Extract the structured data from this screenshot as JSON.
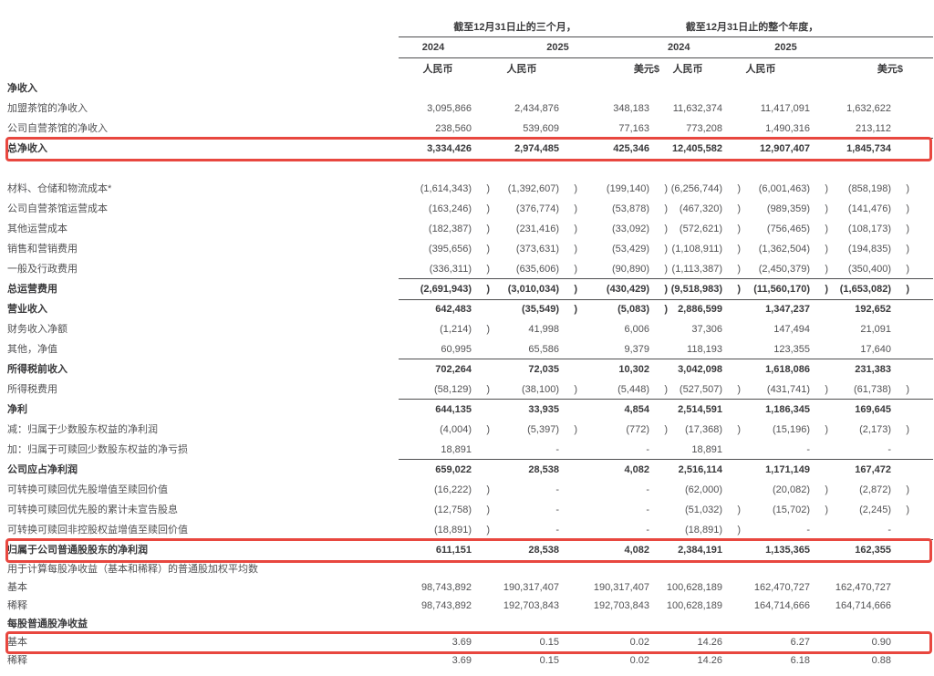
{
  "table": {
    "header": {
      "period_groups": [
        {
          "title": "截至12月31日止的三个月，",
          "years": [
            "2024",
            "2025"
          ]
        },
        {
          "title": "截至12月31日止的整个年度，",
          "years": [
            "2024",
            "2025"
          ]
        }
      ],
      "currency_columns": [
        "人民币",
        "人民币",
        "美元$",
        "人民币",
        "人民币",
        "美元$"
      ]
    },
    "highlight_color": "#e8473f",
    "rows": [
      {
        "label": "净收入",
        "bold": true,
        "values": []
      },
      {
        "label": "加盟茶馆的净收入",
        "values": [
          "3,095,866",
          "2,434,876",
          "348,183",
          "11,632,374",
          "11,417,091",
          "1,632,622"
        ]
      },
      {
        "label": "公司自营茶馆的净收入",
        "values": [
          "238,560",
          "539,609",
          "77,163",
          "773,208",
          "1,490,316",
          "213,112"
        ]
      },
      {
        "label": "总净收入",
        "bold": true,
        "rule_top": true,
        "highlight": true,
        "values": [
          "3,334,426",
          "2,974,485",
          "425,346",
          "12,405,582",
          "12,907,407",
          "1,845,734"
        ]
      },
      {
        "spacer": true
      },
      {
        "label": "材料、仓储和物流成本*",
        "values": [
          "(1,614,343) )",
          "(1,392,607) )",
          "(199,140) )",
          "(6,256,744) )",
          "(6,001,463) )",
          "(858,198) )"
        ]
      },
      {
        "label": "公司自营茶馆运营成本",
        "values": [
          "(163,246) )",
          "(376,774) )",
          "(53,878) )",
          "(467,320) )",
          "(989,359) )",
          "(141,476) )"
        ]
      },
      {
        "label": "其他运营成本",
        "values": [
          "(182,387) )",
          "(231,416) )",
          "(33,092) )",
          "(572,621) )",
          "(756,465) )",
          "(108,173) )"
        ]
      },
      {
        "label": "销售和营销费用",
        "values": [
          "(395,656) )",
          "(373,631) )",
          "(53,429) )",
          "(1,108,911) )",
          "(1,362,504) )",
          "(194,835) )"
        ]
      },
      {
        "label": "一般及行政费用",
        "values": [
          "(336,311) )",
          "(635,606) )",
          "(90,890) )",
          "(1,113,387) )",
          "(2,450,379) )",
          "(350,400) )"
        ]
      },
      {
        "label": "总运营费用",
        "bold": true,
        "rule_top": true,
        "rule_bottom": true,
        "values": [
          "(2,691,943) )",
          "(3,010,034) )",
          "(430,429) )",
          "(9,518,983) )",
          "(11,560,170) )",
          "(1,653,082) )"
        ]
      },
      {
        "label": "营业收入",
        "bold": true,
        "values": [
          "642,483",
          "(35,549) )",
          "(5,083) )",
          "2,886,599",
          "1,347,237",
          "192,652"
        ]
      },
      {
        "label": "财务收入净额",
        "values": [
          "(1,214) )",
          "41,998",
          "6,006",
          "37,306",
          "147,494",
          "21,091"
        ]
      },
      {
        "label": "其他，净值",
        "values": [
          "60,995",
          "65,586",
          "9,379",
          "118,193",
          "123,355",
          "17,640"
        ]
      },
      {
        "label": "所得税前收入",
        "bold": true,
        "rule_top": true,
        "values": [
          "702,264",
          "72,035",
          "10,302",
          "3,042,098",
          "1,618,086",
          "231,383"
        ]
      },
      {
        "label": "所得税费用",
        "values": [
          "(58,129) )",
          "(38,100) )",
          "(5,448) )",
          "(527,507) )",
          "(431,741) )",
          "(61,738) )"
        ]
      },
      {
        "label": "净利",
        "bold": true,
        "rule_top": true,
        "values": [
          "644,135",
          "33,935",
          "4,854",
          "2,514,591",
          "1,186,345",
          "169,645"
        ]
      },
      {
        "label": "减：归属于少数股东权益的净利润",
        "values": [
          "(4,004) )",
          "(5,397) )",
          "(772) )",
          "(17,368) )",
          "(15,196) )",
          "(2,173) )"
        ]
      },
      {
        "label": "加：归属于可赎回少数股东权益的净亏损",
        "values": [
          "18,891",
          "-",
          "-",
          "18,891",
          "-",
          "-"
        ]
      },
      {
        "label": "公司应占净利润",
        "bold": true,
        "rule_top": true,
        "values": [
          "659,022",
          "28,538",
          "4,082",
          "2,516,114",
          "1,171,149",
          "167,472"
        ]
      },
      {
        "label": "可转换可赎回优先股增值至赎回价值",
        "values": [
          "(16,222) )",
          "-",
          "-",
          "(62,000)",
          "(20,082) )",
          "(2,872) )"
        ]
      },
      {
        "label": "可转换可赎回优先股的累计未宣告股息",
        "values": [
          "(12,758) )",
          "-",
          "-",
          "(51,032) )",
          "(15,702) )",
          "(2,245) )"
        ]
      },
      {
        "label": "可转换可赎回非控股权益增值至赎回价值",
        "values": [
          "(18,891) )",
          "-",
          "-",
          "(18,891) )",
          "-",
          "-"
        ]
      },
      {
        "label": "归属于公司普通股股东的净利润",
        "bold": true,
        "rule_top": true,
        "highlight": true,
        "values": [
          "611,151",
          "28,538",
          "4,082",
          "2,384,191",
          "1,135,365",
          "162,355"
        ]
      },
      {
        "label": "用于计算每股净收益（基本和稀释）的普通股加权平均数",
        "compact": true,
        "values": []
      },
      {
        "label": "基本",
        "compact": true,
        "values": [
          "98,743,892",
          "190,317,407",
          "190,317,407",
          "100,628,189",
          "162,470,727",
          "162,470,727"
        ]
      },
      {
        "label": "稀释",
        "compact": true,
        "values": [
          "98,743,892",
          "192,703,843",
          "192,703,843",
          "100,628,189",
          "164,714,666",
          "164,714,666"
        ]
      },
      {
        "label": "每股普通股净收益",
        "bold": true,
        "compact": true,
        "values": []
      },
      {
        "label": "基本",
        "compact": true,
        "highlight": true,
        "values": [
          "3.69",
          "0.15",
          "0.02",
          "14.26",
          "6.27",
          "0.90"
        ]
      },
      {
        "label": "稀释",
        "compact": true,
        "values": [
          "3.69",
          "0.15",
          "0.02",
          "14.26",
          "6.18",
          "0.88"
        ]
      }
    ]
  }
}
